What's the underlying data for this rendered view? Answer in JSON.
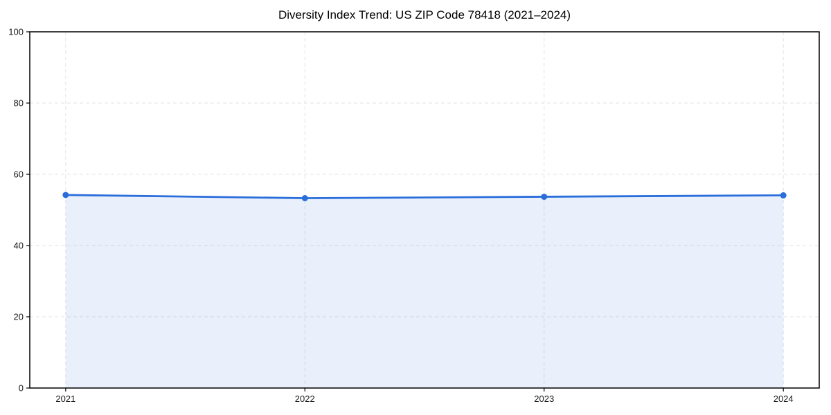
{
  "chart_data": {
    "type": "area",
    "title": "Diversity Index Trend: US ZIP Code 78418 (2021–2024)",
    "categories": [
      "2021",
      "2022",
      "2023",
      "2024"
    ],
    "x": [
      2021,
      2022,
      2023,
      2024
    ],
    "series": [
      {
        "name": "Diversity Index",
        "values": [
          54.2,
          53.3,
          53.7,
          54.1
        ]
      }
    ],
    "xlabel": "",
    "ylabel": "",
    "ylim": [
      0,
      100
    ],
    "xlim_padding_fraction": 0.05,
    "yticks": [
      0,
      20,
      40,
      60,
      80,
      100
    ],
    "grid": "dashed-both-axes",
    "legend_position": "none",
    "marker": "circle",
    "colors": {
      "line": "#2a6edb",
      "marker": "#2a6edb",
      "fill": "#2a6edb",
      "fill_opacity": 0.1,
      "grid": "#e3e3e3",
      "axis_frame": "#000000",
      "title": "#000000",
      "tick_labels": "#1a1a1a",
      "background": "#ffffff"
    }
  }
}
